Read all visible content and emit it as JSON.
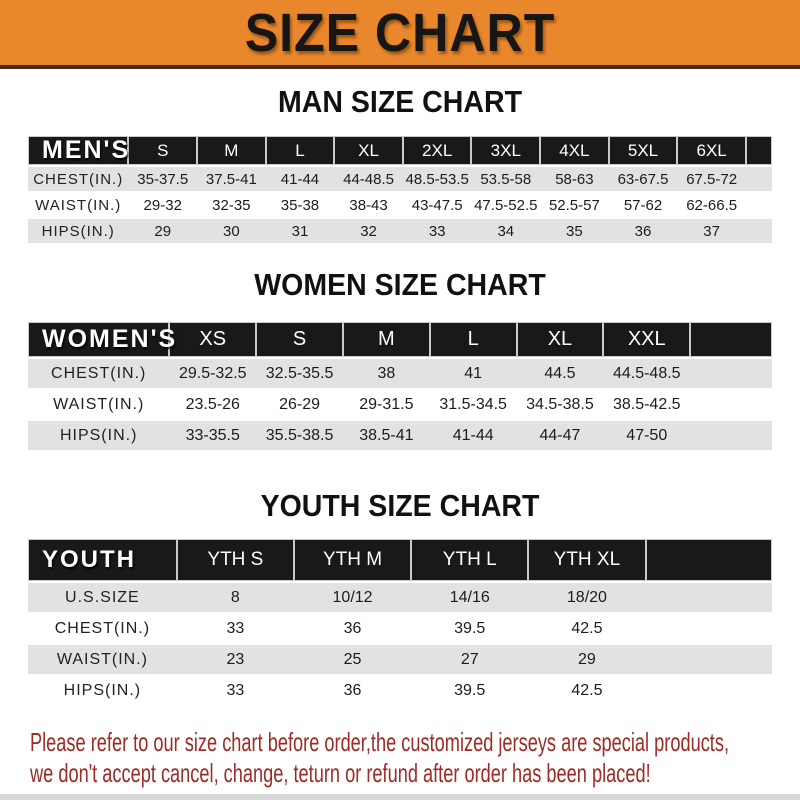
{
  "banner": {
    "title": "SIZE CHART"
  },
  "chart_data": [
    {
      "type": "table",
      "title": "MAN SIZE CHART",
      "header_label": "MEN'S",
      "columns": [
        "S",
        "M",
        "L",
        "XL",
        "2XL",
        "3XL",
        "4XL",
        "5XL",
        "6XL"
      ],
      "rows": [
        {
          "label": "CHEST(IN.)",
          "values": [
            "35-37.5",
            "37.5-41",
            "41-44",
            "44-48.5",
            "48.5-53.5",
            "53.5-58",
            "58-63",
            "63-67.5",
            "67.5-72"
          ]
        },
        {
          "label": "WAIST(IN.)",
          "values": [
            "29-32",
            "32-35",
            "35-38",
            "38-43",
            "43-47.5",
            "47.5-52.5",
            "52.5-57",
            "57-62",
            "62-66.5"
          ]
        },
        {
          "label": "HIPS(IN.)",
          "values": [
            "29",
            "30",
            "31",
            "32",
            "33",
            "34",
            "35",
            "36",
            "37"
          ]
        }
      ]
    },
    {
      "type": "table",
      "title": "WOMEN SIZE CHART",
      "header_label": "WOMEN'S",
      "columns": [
        "XS",
        "S",
        "M",
        "L",
        "XL",
        "XXL"
      ],
      "rows": [
        {
          "label": "CHEST(IN.)",
          "values": [
            "29.5-32.5",
            "32.5-35.5",
            "38",
            "41",
            "44.5",
            "44.5-48.5"
          ]
        },
        {
          "label": "WAIST(IN.)",
          "values": [
            "23.5-26",
            "26-29",
            "29-31.5",
            "31.5-34.5",
            "34.5-38.5",
            "38.5-42.5"
          ]
        },
        {
          "label": "HIPS(IN.)",
          "values": [
            "33-35.5",
            "35.5-38.5",
            "38.5-41",
            "41-44",
            "44-47",
            "47-50"
          ]
        }
      ]
    },
    {
      "type": "table",
      "title": "YOUTH SIZE CHART",
      "header_label": "YOUTH",
      "columns": [
        "YTH S",
        "YTH M",
        "YTH L",
        "YTH XL"
      ],
      "rows": [
        {
          "label": "U.S.SIZE",
          "values": [
            "8",
            "10/12",
            "14/16",
            "18/20"
          ]
        },
        {
          "label": "CHEST(IN.)",
          "values": [
            "33",
            "36",
            "39.5",
            "42.5"
          ]
        },
        {
          "label": "WAIST(IN.)",
          "values": [
            "23",
            "25",
            "27",
            "29"
          ]
        },
        {
          "label": "HIPS(IN.)",
          "values": [
            "33",
            "36",
            "39.5",
            "42.5"
          ]
        }
      ]
    }
  ],
  "note": {
    "line1": "Please refer to our size chart before order,the customized jerseys are special products,",
    "line2": "we don't accept cancel, change, teturn or refund after order has been placed!"
  },
  "colors": {
    "banner_orange": "#E8872C",
    "banner_edge": "#4A2C10",
    "table_header_black": "#191919",
    "row_gray": "#E2E2E2",
    "note_red": "#9E2B26"
  }
}
